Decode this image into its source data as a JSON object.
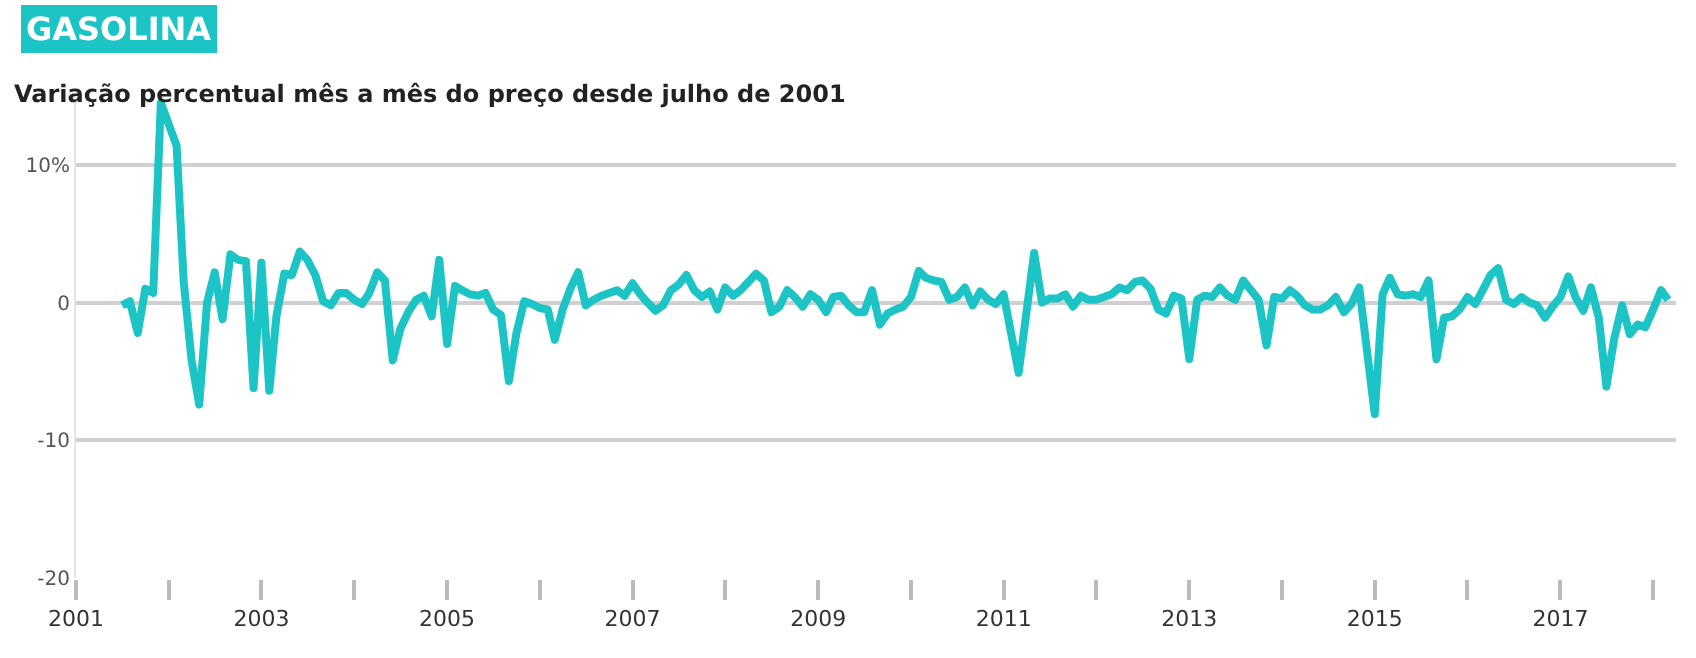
{
  "chart_data": {
    "type": "line",
    "title": "GASOLINA",
    "subtitle": "Variação percentual mês a mês do preço desde julho de 2001",
    "x": [
      "2001-07",
      "2001-08",
      "2001-09",
      "2001-10",
      "2001-11",
      "2001-12",
      "2002-02",
      "2002-03",
      "2002-04",
      "2002-05",
      "2002-06",
      "2002-07",
      "2002-08",
      "2002-09",
      "2002-10",
      "2002-11",
      "2002-12",
      "2003-01",
      "2003-02",
      "2003-03",
      "2003-04",
      "2003-05",
      "2003-06",
      "2003-07",
      "2003-08",
      "2003-09",
      "2003-10",
      "2003-11",
      "2003-12",
      "2004-01",
      "2004-02",
      "2004-03",
      "2004-04",
      "2004-05",
      "2004-06",
      "2004-07",
      "2004-08",
      "2004-09",
      "2004-10",
      "2004-11",
      "2004-12",
      "2005-01",
      "2005-02",
      "2005-03",
      "2005-04",
      "2005-05",
      "2005-06",
      "2005-07",
      "2005-08",
      "2005-09",
      "2005-10",
      "2005-11",
      "2005-12",
      "2006-01",
      "2006-02",
      "2006-03",
      "2006-04",
      "2006-05",
      "2006-06",
      "2006-07",
      "2006-08",
      "2006-09",
      "2006-11",
      "2006-12",
      "2007-01",
      "2007-02",
      "2007-03",
      "2007-04",
      "2007-05",
      "2007-06",
      "2007-07",
      "2007-08",
      "2007-09",
      "2007-10",
      "2007-11",
      "2007-12",
      "2008-01",
      "2008-02",
      "2008-03",
      "2008-04",
      "2008-05",
      "2008-06",
      "2008-07",
      "2008-08",
      "2008-09",
      "2008-10",
      "2008-11",
      "2008-12",
      "2009-01",
      "2009-02",
      "2009-03",
      "2009-04",
      "2009-05",
      "2009-06",
      "2009-07",
      "2009-08",
      "2009-09",
      "2009-10",
      "2009-11",
      "2009-12",
      "2010-01",
      "2010-02",
      "2010-03",
      "2010-04",
      "2010-05",
      "2010-06",
      "2010-07",
      "2010-08",
      "2010-09",
      "2010-10",
      "2010-11",
      "2010-12",
      "2011-01",
      "2011-03",
      "2011-05",
      "2011-06",
      "2011-07",
      "2011-08",
      "2011-09",
      "2011-10",
      "2011-11",
      "2011-12",
      "2012-01",
      "2012-03",
      "2012-04",
      "2012-05",
      "2012-06",
      "2012-07",
      "2012-08",
      "2012-09",
      "2012-10",
      "2012-11",
      "2012-12",
      "2013-01",
      "2013-02",
      "2013-03",
      "2013-04",
      "2013-05",
      "2013-06",
      "2013-07",
      "2013-08",
      "2013-09",
      "2013-10",
      "2013-11",
      "2013-12",
      "2014-01",
      "2014-02",
      "2014-03",
      "2014-04",
      "2014-05",
      "2014-06",
      "2014-07",
      "2014-08",
      "2014-09",
      "2014-10",
      "2014-11",
      "2015-01",
      "2015-02",
      "2015-03",
      "2015-04",
      "2015-05",
      "2015-06",
      "2015-07",
      "2015-08",
      "2015-09",
      "2015-10",
      "2015-11",
      "2015-12",
      "2016-01",
      "2016-02",
      "2016-03",
      "2016-04",
      "2016-05",
      "2016-06",
      "2016-07",
      "2016-08",
      "2016-09",
      "2016-10",
      "2016-11",
      "2016-12",
      "2017-01",
      "2017-02",
      "2017-03",
      "2017-04",
      "2017-05",
      "2017-06",
      "2017-07",
      "2017-08",
      "2017-09",
      "2017-10",
      "2017-11",
      "2017-12",
      "2018-01",
      "2018-02",
      "2018-03"
    ],
    "series": [
      {
        "color": "#1cc4c6",
        "values": [
          -0.2,
          0.1,
          -2.2,
          1,
          0.7,
          14.5,
          11.4,
          1.5,
          -4.2,
          -7.4,
          0,
          2.2,
          -1.2,
          3.5,
          3.1,
          3,
          -6.2,
          2.9,
          -6.4,
          -1,
          2.1,
          2,
          3.7,
          3.1,
          2,
          0.1,
          -0.2,
          0.7,
          0.7,
          0.2,
          -0.1,
          0.7,
          2.2,
          1.6,
          -4.2,
          -1.9,
          -0.7,
          0.2,
          0.5,
          -1,
          3.1,
          -3,
          1.2,
          0.9,
          0.6,
          0.5,
          0.7,
          -0.5,
          -0.9,
          -5.7,
          -2.2,
          0.1,
          -0.1,
          -0.4,
          -0.5,
          -2.7,
          -0.5,
          1,
          2.2,
          -0.2,
          0.2,
          0.5,
          0.9,
          0.5,
          1.4,
          0.6,
          0,
          -0.6,
          -0.2,
          0.9,
          1.3,
          2,
          0.9,
          0.4,
          0.8,
          -0.5,
          1.1,
          0.5,
          0.9,
          1.5,
          2.1,
          1.6,
          -0.7,
          -0.3,
          0.9,
          0.4,
          -0.3,
          0.6,
          0.2,
          -0.7,
          0.4,
          0.5,
          -0.2,
          -0.7,
          -0.7,
          0.9,
          -1.6,
          -0.8,
          -0.5,
          -0.3,
          0.4,
          2.3,
          1.8,
          1.6,
          1.5,
          0.2,
          0.4,
          1.1,
          -0.2,
          0.8,
          0.2,
          -0.1,
          0.6,
          -5.1,
          3.6,
          0,
          0.3,
          0.3,
          0.6,
          -0.3,
          0.5,
          0.2,
          0.2,
          0.6,
          1.1,
          0.9,
          1.5,
          1.6,
          1,
          -0.5,
          -0.8,
          0.5,
          0.3,
          -4.1,
          0.2,
          0.5,
          0.4,
          1.1,
          0.5,
          0.2,
          1.6,
          0.9,
          0.2,
          -3.1,
          0.4,
          0.3,
          0.9,
          0.5,
          -0.2,
          -0.5,
          -0.5,
          -0.2,
          0.4,
          -0.7,
          -0.1,
          1.1,
          -8.1,
          0.6,
          1.8,
          0.6,
          0.5,
          0.6,
          0.4,
          1.6,
          -4.1,
          -1.1,
          -1,
          -0.5,
          0.4,
          -0.1,
          0.9,
          2,
          2.5,
          0.2,
          -0.1,
          0.4,
          0,
          -0.2,
          -1.1,
          -0.3,
          0.4,
          1.9,
          0.4,
          -0.6,
          1.1,
          -1.1,
          -6.1,
          -2.6,
          -0.2,
          -2.3,
          -1.6,
          -1.8,
          -0.5,
          0.9,
          0.2
        ]
      }
    ],
    "xlim": [
      "2001-01",
      "2018-04"
    ],
    "xticks": [
      {
        "value": "2001",
        "label": "2001"
      },
      {
        "value": "2002",
        "label": null
      },
      {
        "value": "2003",
        "label": "2003"
      },
      {
        "value": "2004",
        "label": null
      },
      {
        "value": "2005",
        "label": "2005"
      },
      {
        "value": "2006",
        "label": null
      },
      {
        "value": "2007",
        "label": "2007"
      },
      {
        "value": "2008",
        "label": null
      },
      {
        "value": "2009",
        "label": "2009"
      },
      {
        "value": "2010",
        "label": null
      },
      {
        "value": "2011",
        "label": "2011"
      },
      {
        "value": "2012",
        "label": null
      },
      {
        "value": "2013",
        "label": "2013"
      },
      {
        "value": "2014",
        "label": null
      },
      {
        "value": "2015",
        "label": "2015"
      },
      {
        "value": "2016",
        "label": null
      },
      {
        "value": "2017",
        "label": "2017"
      },
      {
        "value": "2018",
        "label": null
      }
    ],
    "ylim": [
      -20,
      15
    ],
    "yticks": [
      {
        "value": 10,
        "label": "10%"
      },
      0,
      -10,
      -20
    ],
    "grid": "y",
    "marker": "none",
    "line_style": "solid"
  }
}
